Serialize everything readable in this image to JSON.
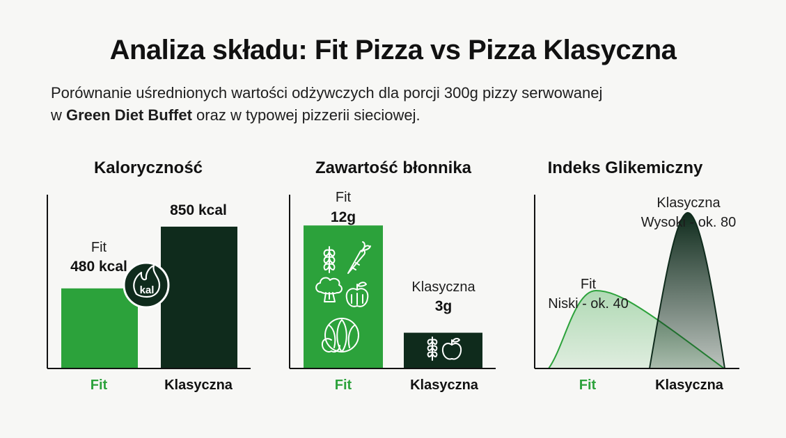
{
  "header": {
    "title": "Analiza składu: Fit Pizza vs Pizza Klasyczna",
    "subtitle_line1": "Porównanie uśrednionych wartości odżywczych dla porcji 300g pizzy serwowanej",
    "subtitle_pre": "w ",
    "subtitle_bold": "Green Diet Buffet",
    "subtitle_post": " oraz  w typowej pizzerii sieciowej."
  },
  "colors": {
    "fit": "#2ca23b",
    "classic": "#0f2b1c",
    "fit_label": "#2ca23b",
    "axis": "#111111"
  },
  "chart_data": [
    {
      "type": "bar",
      "title": "Kaloryczność",
      "categories": [
        "Fit",
        "Klasyczna"
      ],
      "values": [
        480,
        850
      ],
      "unit": "kcal",
      "ylim": [
        0,
        1000
      ],
      "data_labels": [
        {
          "name": "Fit",
          "value": "480 kcal"
        },
        {
          "name": "",
          "value": "850 kcal"
        }
      ],
      "badge_text": "kal",
      "badge_icon": "flame-icon"
    },
    {
      "type": "bar",
      "title": "Zawartość błonnika",
      "categories": [
        "Fit",
        "Klasyczna"
      ],
      "values": [
        12,
        3
      ],
      "unit": "g",
      "ylim": [
        0,
        14
      ],
      "data_labels": [
        {
          "name": "Fit",
          "value": "12g"
        },
        {
          "name": "Klasyczna",
          "value": "3g"
        }
      ],
      "bar_icons": [
        [
          "wheat-icon",
          "carrot-icon",
          "broccoli-icon",
          "apple-icon",
          "cabbage-icon"
        ],
        [
          "wheat-icon",
          "apple-icon"
        ]
      ]
    },
    {
      "type": "area",
      "title": "Indeks Glikemiczny",
      "categories": [
        "Fit",
        "Klasyczna"
      ],
      "values": [
        40,
        80
      ],
      "ylim": [
        0,
        100
      ],
      "data_labels": [
        {
          "name": "Fit",
          "value": "Niski - ok. 40"
        },
        {
          "name": "Klasyczna",
          "value": "Wysoki - ok. 80"
        }
      ]
    }
  ]
}
